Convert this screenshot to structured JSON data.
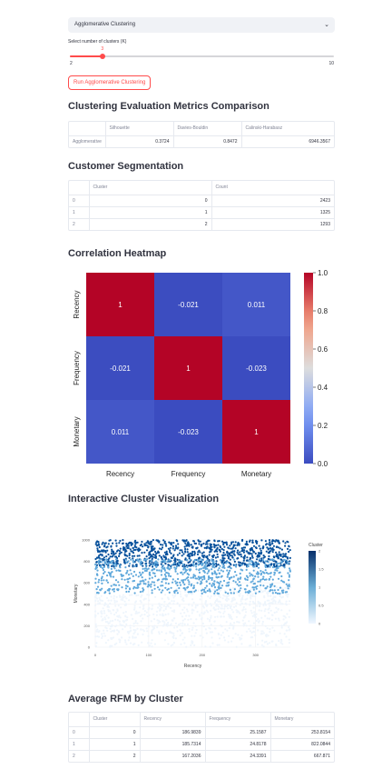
{
  "algorithm_select": {
    "value": "Agglomerative Clustering"
  },
  "cluster_slider": {
    "label": "Select number of clusters (K)",
    "value": 3,
    "min": 2,
    "max": 10
  },
  "run_button": {
    "label": "Run Agglomerative Clustering"
  },
  "metrics": {
    "title": "Clustering Evaluation Metrics Comparison",
    "columns": [
      "",
      "Silhouette",
      "Davies-Bouldin",
      "Calinski-Harabasz"
    ],
    "rows": [
      [
        "Agglomerative",
        "0.3724",
        "0.8472",
        "6946.3567"
      ]
    ]
  },
  "segmentation": {
    "title": "Customer Segmentation",
    "columns": [
      "",
      "Cluster",
      "Count"
    ],
    "rows": [
      [
        "0",
        "0",
        "2423"
      ],
      [
        "1",
        "1",
        "1325"
      ],
      [
        "2",
        "2",
        "1293"
      ]
    ]
  },
  "heatmap_section": {
    "title": "Correlation Heatmap"
  },
  "scatter_section": {
    "title": "Interactive Cluster Visualization"
  },
  "avg_rfm": {
    "title": "Average RFM by Cluster",
    "columns": [
      "",
      "Cluster",
      "Recency",
      "Frequency",
      "Monetary"
    ],
    "rows": [
      [
        "0",
        "0",
        "186.9839",
        "25.1587",
        "253.8154"
      ],
      [
        "1",
        "1",
        "185.7314",
        "24.8178",
        "822.0844"
      ],
      [
        "2",
        "2",
        "167.2036",
        "24.3391",
        "667.871"
      ]
    ]
  },
  "chart_data": [
    {
      "type": "heatmap",
      "row_labels": [
        "Recency",
        "Frequency",
        "Monetary"
      ],
      "col_labels": [
        "Recency",
        "Frequency",
        "Monetary"
      ],
      "values": [
        [
          1,
          -0.021,
          0.011
        ],
        [
          -0.021,
          1,
          -0.023
        ],
        [
          0.011,
          -0.023,
          1
        ]
      ],
      "colorscale": "coolwarm",
      "colorbar_ticks": [
        "0.0",
        "0.2",
        "0.4",
        "0.6",
        "0.8",
        "1.0"
      ],
      "colorbar_range": [
        0,
        1
      ]
    },
    {
      "type": "scatter",
      "xlabel": "Recency",
      "ylabel": "Monetary",
      "xlim": [
        0,
        365
      ],
      "ylim": [
        0,
        1000
      ],
      "x_ticks": [
        0,
        100,
        200,
        300
      ],
      "y_ticks": [
        0,
        200,
        400,
        600,
        800,
        1000
      ],
      "colorbar_title": "Cluster",
      "colorbar_ticks": [
        "0",
        "0.5",
        "1",
        "1.5",
        "2"
      ],
      "clusters": [
        {
          "cluster": 0,
          "color": "#eef5fc",
          "monetary_range": [
            0,
            500
          ],
          "recency_range": [
            0,
            365
          ]
        },
        {
          "cluster": 1,
          "color": "#08519c",
          "monetary_range": [
            750,
            1000
          ],
          "recency_range": [
            0,
            365
          ]
        },
        {
          "cluster": 2,
          "color": "#5fa8db",
          "monetary_range": [
            500,
            820
          ],
          "recency_range": [
            0,
            365
          ]
        }
      ]
    }
  ]
}
